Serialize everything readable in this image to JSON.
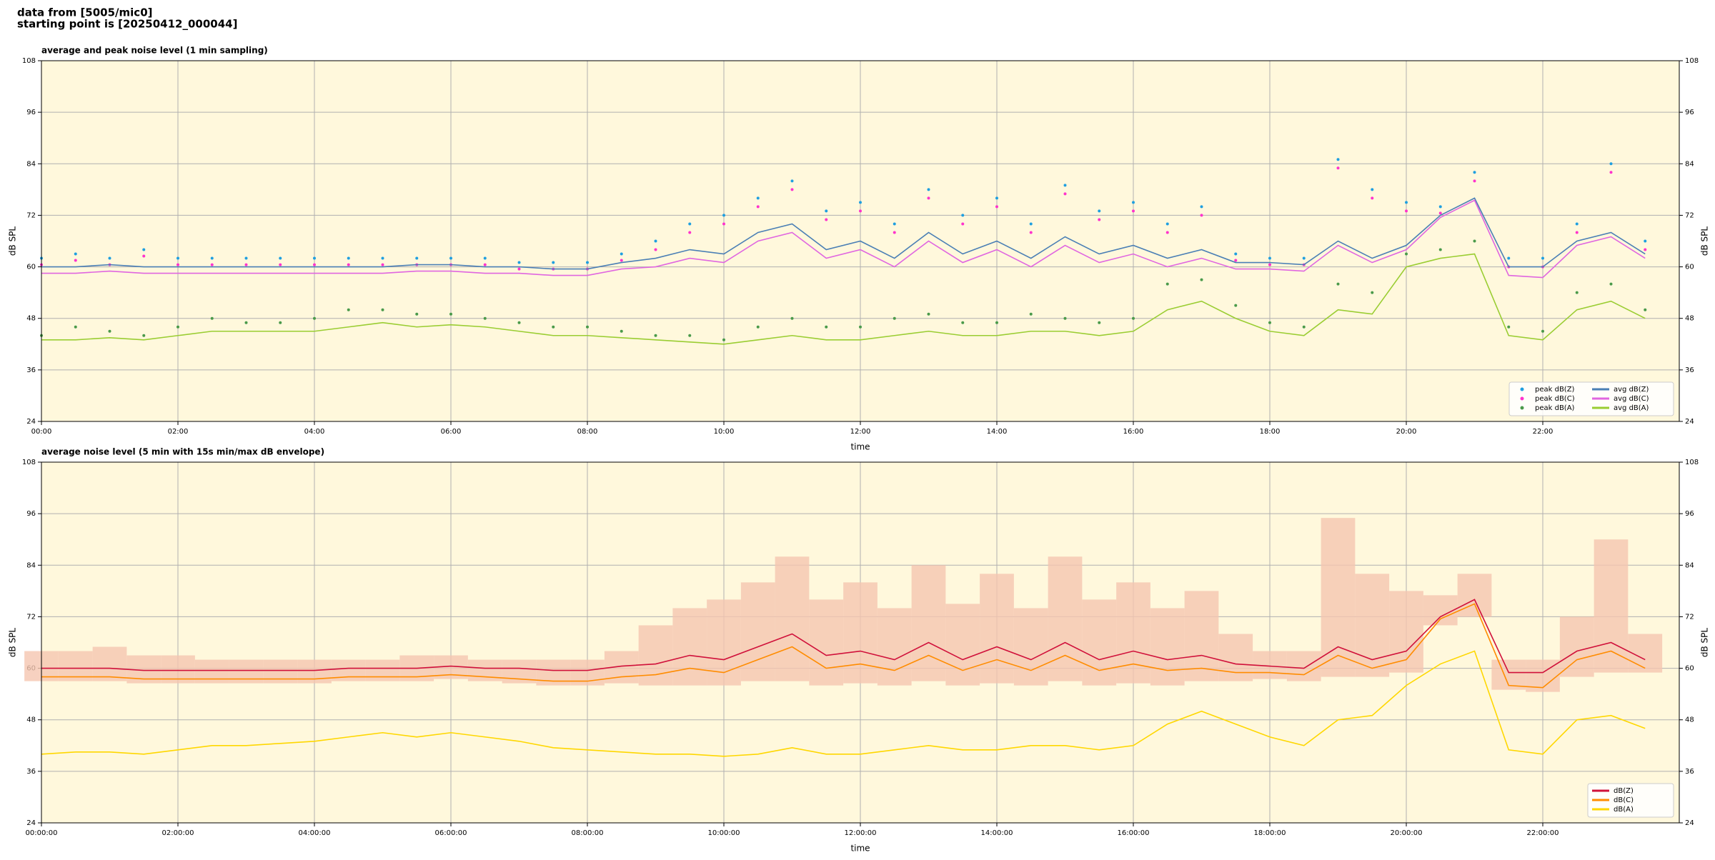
{
  "header": {
    "line1": "data from [5005/mic0]",
    "line2": "starting point is [20250412_000044]"
  },
  "chart_data": [
    {
      "type": "line",
      "title": "average and peak noise level (1 min sampling)",
      "x_label": "time",
      "y_label": "dB SPL",
      "grid": true,
      "background": "#fff8dc",
      "legend": "lower right",
      "legend_columns": 2,
      "x": [
        0,
        0.5,
        1,
        1.5,
        2,
        2.5,
        3,
        3.5,
        4,
        4.5,
        5,
        5.5,
        6,
        6.5,
        7,
        7.5,
        8,
        8.5,
        9,
        9.5,
        10,
        10.5,
        11,
        11.5,
        12,
        12.5,
        13,
        13.5,
        14,
        14.5,
        15,
        15.5,
        16,
        16.5,
        17,
        17.5,
        18,
        18.5,
        19,
        19.5,
        20,
        20.5,
        21,
        21.5,
        22,
        22.5,
        23,
        23.5
      ],
      "xlim": [
        0,
        24
      ],
      "xticks": [
        {
          "value": 0,
          "label": "00:00"
        },
        {
          "value": 2,
          "label": "02:00"
        },
        {
          "value": 4,
          "label": "04:00"
        },
        {
          "value": 6,
          "label": "06:00"
        },
        {
          "value": 8,
          "label": "08:00"
        },
        {
          "value": 10,
          "label": "10:00"
        },
        {
          "value": 12,
          "label": "12:00"
        },
        {
          "value": 14,
          "label": "14:00"
        },
        {
          "value": 16,
          "label": "16:00"
        },
        {
          "value": 18,
          "label": "18:00"
        },
        {
          "value": 20,
          "label": "20:00"
        },
        {
          "value": 22,
          "label": "22:00"
        }
      ],
      "ylim": [
        24,
        108
      ],
      "yticks": [
        24,
        36,
        48,
        60,
        72,
        84,
        96,
        108
      ],
      "series": [
        {
          "name": "peak dB(Z)",
          "color": "#1f9fe0",
          "mark": "dot",
          "values": [
            62,
            63,
            62,
            64,
            62,
            62,
            62,
            62,
            62,
            62,
            62,
            62,
            62,
            62,
            61,
            61,
            61,
            63,
            66,
            70,
            72,
            76,
            80,
            73,
            75,
            70,
            78,
            72,
            76,
            70,
            79,
            73,
            75,
            70,
            74,
            63,
            62,
            62,
            85,
            78,
            75,
            74,
            82,
            62,
            62,
            70,
            84,
            66
          ]
        },
        {
          "name": "peak dB(C)",
          "color": "#ff33cc",
          "mark": "dot",
          "values": [
            60.5,
            61.5,
            60.5,
            62.5,
            60.5,
            60.5,
            60.5,
            60.5,
            60.5,
            60.5,
            60.5,
            60.5,
            60.5,
            60.5,
            59.5,
            59.5,
            59.5,
            61.5,
            64,
            68,
            70,
            74,
            78,
            71,
            73,
            68,
            76,
            70,
            74,
            68,
            77,
            71,
            73,
            68,
            72,
            61.5,
            60.5,
            60.5,
            83,
            76,
            73,
            72.5,
            80,
            60,
            60,
            68,
            82,
            64
          ]
        },
        {
          "name": "peak dB(A)",
          "color": "#4a9a4a",
          "mark": "dot",
          "values": [
            44,
            46,
            45,
            44,
            46,
            48,
            47,
            47,
            48,
            50,
            50,
            49,
            49,
            48,
            47,
            46,
            46,
            45,
            44,
            44,
            43,
            46,
            48,
            46,
            46,
            48,
            49,
            47,
            47,
            49,
            48,
            47,
            48,
            56,
            57,
            51,
            47,
            46,
            56,
            54,
            63,
            64,
            66,
            46,
            45,
            54,
            56,
            50
          ]
        },
        {
          "name": "avg dB(Z)",
          "color": "#4a7fb5",
          "mark": "line",
          "values": [
            60,
            60,
            60.5,
            60,
            60,
            60,
            60,
            60,
            60,
            60,
            60,
            60.5,
            60.5,
            60,
            60,
            59.5,
            59.5,
            61,
            62,
            64,
            63,
            68,
            70,
            64,
            66,
            62,
            68,
            63,
            66,
            62,
            67,
            63,
            65,
            62,
            64,
            61,
            61,
            60.5,
            66,
            62,
            65,
            72,
            76,
            60,
            60,
            66,
            68,
            63
          ]
        },
        {
          "name": "avg dB(C)",
          "color": "#e066e0",
          "mark": "line",
          "values": [
            58.5,
            58.5,
            59,
            58.5,
            58.5,
            58.5,
            58.5,
            58.5,
            58.5,
            58.5,
            58.5,
            59,
            59,
            58.5,
            58.5,
            58,
            58,
            59.5,
            60,
            62,
            61,
            66,
            68,
            62,
            64,
            60,
            66,
            61,
            64,
            60,
            65,
            61,
            63,
            60,
            62,
            59.5,
            59.5,
            59,
            65,
            61,
            64,
            71.5,
            75.5,
            58,
            57.5,
            65,
            67,
            62
          ]
        },
        {
          "name": "avg dB(A)",
          "color": "#9acd32",
          "mark": "line",
          "values": [
            43,
            43,
            43.5,
            43,
            44,
            45,
            45,
            45,
            45,
            46,
            47,
            46,
            46.5,
            46,
            45,
            44,
            44,
            43.5,
            43,
            42.5,
            42,
            43,
            44,
            43,
            43,
            44,
            45,
            44,
            44,
            45,
            45,
            44,
            45,
            50,
            52,
            48,
            45,
            44,
            50,
            49,
            60,
            62,
            63,
            44,
            43,
            50,
            52,
            48
          ]
        }
      ]
    },
    {
      "type": "line",
      "title": "average noise level (5 min with 15s min/max dB envelope)",
      "x_label": "time",
      "y_label": "dB SPL",
      "grid": true,
      "background": "#fff8dc",
      "legend": "lower right",
      "legend_columns": 1,
      "x": [
        0,
        0.5,
        1,
        1.5,
        2,
        2.5,
        3,
        3.5,
        4,
        4.5,
        5,
        5.5,
        6,
        6.5,
        7,
        7.5,
        8,
        8.5,
        9,
        9.5,
        10,
        10.5,
        11,
        11.5,
        12,
        12.5,
        13,
        13.5,
        14,
        14.5,
        15,
        15.5,
        16,
        16.5,
        17,
        17.5,
        18,
        18.5,
        19,
        19.5,
        20,
        20.5,
        21,
        21.5,
        22,
        22.5,
        23,
        23.5
      ],
      "xlim": [
        0,
        24
      ],
      "xticks": [
        {
          "value": 0,
          "label": "00:00:00"
        },
        {
          "value": 2,
          "label": "02:00:00"
        },
        {
          "value": 4,
          "label": "04:00:00"
        },
        {
          "value": 6,
          "label": "06:00:00"
        },
        {
          "value": 8,
          "label": "08:00:00"
        },
        {
          "value": 10,
          "label": "10:00:00"
        },
        {
          "value": 12,
          "label": "12:00:00"
        },
        {
          "value": 14,
          "label": "14:00:00"
        },
        {
          "value": 16,
          "label": "16:00:00"
        },
        {
          "value": 18,
          "label": "18:00:00"
        },
        {
          "value": 20,
          "label": "20:00:00"
        },
        {
          "value": 22,
          "label": "22:00:00"
        }
      ],
      "ylim": [
        24,
        108
      ],
      "yticks": [
        24,
        36,
        48,
        60,
        72,
        84,
        96,
        108
      ],
      "envelope": {
        "color": "#f5c6b0",
        "upper": [
          64,
          64,
          65,
          63,
          63,
          62,
          62,
          62,
          62,
          62,
          62,
          63,
          63,
          62,
          62,
          62,
          62,
          64,
          70,
          74,
          76,
          80,
          86,
          76,
          80,
          74,
          84,
          75,
          82,
          74,
          86,
          76,
          80,
          74,
          78,
          68,
          64,
          64,
          95,
          82,
          78,
          77,
          82,
          62,
          62,
          72,
          90,
          68
        ],
        "lower": [
          57,
          57,
          57,
          56.5,
          56.5,
          56.5,
          56.5,
          56.5,
          56.5,
          57,
          57,
          57,
          57.5,
          57,
          56.5,
          56,
          56,
          56.5,
          56,
          56,
          56,
          57,
          57,
          56,
          56.5,
          56,
          57,
          56,
          56.5,
          56,
          57,
          56,
          56.5,
          56,
          57,
          57,
          57.5,
          57,
          58,
          58,
          59,
          70,
          72,
          55,
          54.5,
          58,
          59,
          59
        ]
      },
      "series": [
        {
          "name": "dB(Z)",
          "color": "#d0103a",
          "mark": "line",
          "values": [
            60,
            60,
            60,
            59.5,
            59.5,
            59.5,
            59.5,
            59.5,
            59.5,
            60,
            60,
            60,
            60.5,
            60,
            60,
            59.5,
            59.5,
            60.5,
            61,
            63,
            62,
            65,
            68,
            63,
            64,
            62,
            66,
            62,
            65,
            62,
            66,
            62,
            64,
            62,
            63,
            61,
            60.5,
            60,
            65,
            62,
            64,
            72,
            76,
            59,
            59,
            64,
            66,
            62
          ]
        },
        {
          "name": "dB(C)",
          "color": "#ff8c00",
          "mark": "line",
          "values": [
            58,
            58,
            58,
            57.5,
            57.5,
            57.5,
            57.5,
            57.5,
            57.5,
            58,
            58,
            58,
            58.5,
            58,
            57.5,
            57,
            57,
            58,
            58.5,
            60,
            59,
            62,
            65,
            60,
            61,
            59.5,
            63,
            59.5,
            62,
            59.5,
            63,
            59.5,
            61,
            59.5,
            60,
            59,
            59,
            58.5,
            63,
            60,
            62,
            71.5,
            75,
            56,
            55.5,
            62,
            64,
            60
          ]
        },
        {
          "name": "dB(A)",
          "color": "#ffd700",
          "mark": "line",
          "values": [
            40,
            40.5,
            40.5,
            40,
            41,
            42,
            42,
            42.5,
            43,
            44,
            45,
            44,
            45,
            44,
            43,
            41.5,
            41,
            40.5,
            40,
            40,
            39.5,
            40,
            41.5,
            40,
            40,
            41,
            42,
            41,
            41,
            42,
            42,
            41,
            42,
            47,
            50,
            47,
            44,
            42,
            48,
            49,
            56,
            61,
            64,
            41,
            40,
            48,
            49,
            46
          ]
        }
      ]
    }
  ]
}
